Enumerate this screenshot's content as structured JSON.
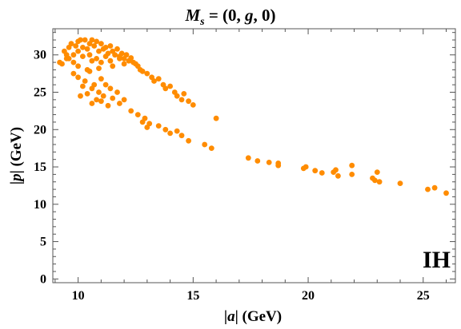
{
  "chart_data": {
    "type": "scatter",
    "title": "M_s = (0, g, 0)",
    "xlabel": "|a| (GeV)",
    "ylabel": "|p| (GeV)",
    "annotation": "IH",
    "xlim": [
      8.9,
      26.4
    ],
    "ylim": [
      -0.5,
      33.5
    ],
    "x_ticks": [
      10,
      15,
      20,
      25
    ],
    "y_ticks": [
      0,
      5,
      10,
      15,
      20,
      25,
      30
    ],
    "grid": false,
    "marker_color": "#ff8c00",
    "series": [
      {
        "points": [
          [
            9.2,
            29.0
          ],
          [
            9.4,
            30.5
          ],
          [
            9.5,
            29.5
          ],
          [
            9.6,
            31.0
          ],
          [
            9.7,
            31.5
          ],
          [
            9.8,
            30.0
          ],
          [
            9.9,
            31.2
          ],
          [
            10.0,
            31.8
          ],
          [
            10.0,
            30.5
          ],
          [
            10.1,
            32.0
          ],
          [
            10.2,
            31.0
          ],
          [
            10.3,
            32.0
          ],
          [
            10.4,
            30.8
          ],
          [
            10.5,
            31.5
          ],
          [
            10.6,
            32.0
          ],
          [
            10.7,
            31.2
          ],
          [
            10.8,
            31.8
          ],
          [
            10.9,
            30.5
          ],
          [
            11.0,
            31.5
          ],
          [
            11.1,
            30.8
          ],
          [
            11.2,
            31.0
          ],
          [
            11.3,
            30.2
          ],
          [
            11.4,
            31.2
          ],
          [
            11.5,
            30.5
          ],
          [
            11.6,
            30.0
          ],
          [
            11.7,
            30.8
          ],
          [
            11.8,
            29.8
          ],
          [
            11.9,
            30.2
          ],
          [
            12.0,
            29.5
          ],
          [
            12.1,
            30.0
          ],
          [
            12.2,
            29.2
          ],
          [
            12.3,
            29.6
          ],
          [
            12.4,
            29.0
          ],
          [
            12.5,
            28.8
          ],
          [
            12.6,
            28.5
          ],
          [
            12.7,
            28.0
          ],
          [
            12.8,
            27.8
          ],
          [
            9.6,
            29.5
          ],
          [
            10.2,
            29.8
          ],
          [
            10.8,
            29.5
          ],
          [
            11.4,
            29.2
          ],
          [
            9.8,
            29.0
          ],
          [
            10.6,
            29.2
          ],
          [
            11.0,
            29.0
          ],
          [
            10.0,
            28.5
          ],
          [
            10.4,
            28.0
          ],
          [
            10.9,
            28.2
          ],
          [
            11.5,
            28.5
          ],
          [
            9.8,
            27.5
          ],
          [
            10.0,
            27.0
          ],
          [
            10.3,
            26.5
          ],
          [
            10.5,
            27.8
          ],
          [
            10.7,
            26.0
          ],
          [
            11.0,
            26.8
          ],
          [
            10.2,
            25.8
          ],
          [
            10.6,
            25.5
          ],
          [
            10.9,
            25.0
          ],
          [
            11.2,
            26.0
          ],
          [
            11.4,
            25.5
          ],
          [
            10.1,
            24.5
          ],
          [
            10.4,
            24.8
          ],
          [
            10.8,
            24.0
          ],
          [
            11.1,
            24.5
          ],
          [
            11.5,
            24.2
          ],
          [
            11.7,
            25.0
          ],
          [
            10.6,
            23.5
          ],
          [
            11.0,
            23.8
          ],
          [
            11.3,
            23.2
          ],
          [
            11.8,
            23.5
          ],
          [
            12.0,
            24.0
          ],
          [
            13.0,
            27.5
          ],
          [
            13.2,
            27.0
          ],
          [
            13.3,
            26.5
          ],
          [
            13.5,
            26.8
          ],
          [
            13.7,
            26.0
          ],
          [
            13.8,
            25.5
          ],
          [
            14.0,
            25.8
          ],
          [
            14.2,
            25.0
          ],
          [
            14.3,
            24.5
          ],
          [
            14.5,
            24.0
          ],
          [
            14.6,
            24.8
          ],
          [
            14.8,
            23.8
          ],
          [
            15.0,
            23.3
          ],
          [
            12.3,
            22.5
          ],
          [
            12.6,
            22.0
          ],
          [
            12.9,
            21.5
          ],
          [
            12.8,
            21.0
          ],
          [
            13.1,
            20.8
          ],
          [
            13.0,
            20.3
          ],
          [
            13.5,
            20.5
          ],
          [
            13.8,
            20.0
          ],
          [
            14.0,
            19.5
          ],
          [
            14.3,
            19.8
          ],
          [
            14.5,
            19.2
          ],
          [
            14.8,
            18.5
          ],
          [
            15.5,
            18.0
          ],
          [
            15.8,
            17.5
          ],
          [
            16.0,
            21.5
          ],
          [
            17.4,
            16.2
          ],
          [
            17.8,
            15.8
          ],
          [
            18.3,
            15.6
          ],
          [
            18.7,
            15.2
          ],
          [
            18.7,
            15.5
          ],
          [
            19.8,
            14.8
          ],
          [
            19.9,
            15.0
          ],
          [
            20.3,
            14.5
          ],
          [
            20.6,
            14.2
          ],
          [
            21.1,
            14.3
          ],
          [
            21.2,
            14.6
          ],
          [
            21.3,
            13.8
          ],
          [
            21.9,
            15.2
          ],
          [
            21.9,
            14.0
          ],
          [
            22.8,
            13.5
          ],
          [
            22.9,
            13.2
          ],
          [
            23.0,
            14.3
          ],
          [
            23.1,
            13.0
          ],
          [
            24.0,
            12.8
          ],
          [
            25.2,
            12.0
          ],
          [
            25.5,
            12.2
          ],
          [
            26.0,
            11.5
          ],
          [
            9.3,
            28.8
          ],
          [
            9.5,
            30.0
          ],
          [
            10.5,
            30.0
          ],
          [
            11.2,
            29.8
          ],
          [
            11.8,
            29.5
          ],
          [
            12.0,
            28.8
          ]
        ]
      }
    ]
  }
}
